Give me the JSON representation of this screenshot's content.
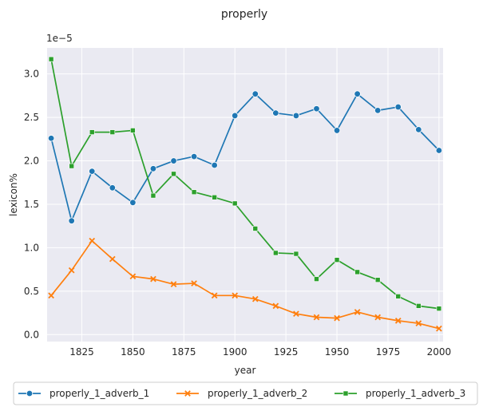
{
  "chart_data": {
    "type": "line",
    "title": "properly",
    "xlabel": "year",
    "ylabel": "lexicon%",
    "y_offset_label": "1e−5",
    "xlim": [
      1808,
      2002
    ],
    "ylim": [
      -0.08,
      3.3
    ],
    "grid": true,
    "background": "#eaeaf2",
    "legend_placement": "bottom-center",
    "x_ticks": [
      1825,
      1850,
      1875,
      1900,
      1925,
      1950,
      1975,
      2000
    ],
    "y_ticks": [
      0.0,
      0.5,
      1.0,
      1.5,
      2.0,
      2.5,
      3.0
    ],
    "x_tick_labels": [
      "1825",
      "1850",
      "1875",
      "1900",
      "1925",
      "1950",
      "1975",
      "2000"
    ],
    "y_tick_labels": [
      "0.0",
      "0.5",
      "1.0",
      "1.5",
      "2.0",
      "2.5",
      "3.0"
    ],
    "x": [
      1810,
      1820,
      1830,
      1840,
      1850,
      1860,
      1870,
      1880,
      1890,
      1900,
      1910,
      1920,
      1930,
      1940,
      1950,
      1960,
      1970,
      1980,
      1990,
      2000
    ],
    "series": [
      {
        "name": "properly_1_adverb_1",
        "color": "#1f77b4",
        "marker": "circle",
        "values": [
          2.26,
          1.31,
          1.88,
          1.69,
          1.52,
          1.91,
          2.0,
          2.05,
          1.95,
          2.52,
          2.77,
          2.55,
          2.52,
          2.6,
          2.35,
          2.77,
          2.58,
          2.62,
          2.36,
          2.12
        ]
      },
      {
        "name": "properly_1_adverb_2",
        "color": "#ff7f0e",
        "marker": "x",
        "values": [
          0.45,
          0.74,
          1.08,
          0.87,
          0.67,
          0.64,
          0.58,
          0.59,
          0.45,
          0.45,
          0.41,
          0.33,
          0.24,
          0.2,
          0.19,
          0.26,
          0.2,
          0.16,
          0.13,
          0.07
        ]
      },
      {
        "name": "properly_1_adverb_3",
        "color": "#2ca02c",
        "marker": "square",
        "values": [
          3.17,
          1.94,
          2.33,
          2.33,
          2.35,
          1.6,
          1.85,
          1.64,
          1.58,
          1.51,
          1.22,
          0.94,
          0.93,
          0.64,
          0.86,
          0.72,
          0.63,
          0.44,
          0.33,
          0.3
        ]
      }
    ]
  }
}
